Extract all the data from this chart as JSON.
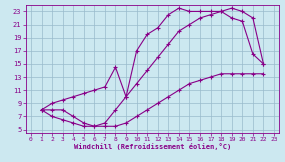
{
  "bg_color": "#cce8f0",
  "line_color": "#880088",
  "grid_color": "#99bbcc",
  "xlabel": "Windchill (Refroidissement éolien,°C)",
  "xlim": [
    -0.5,
    23.5
  ],
  "ylim": [
    4.5,
    24
  ],
  "xticks": [
    0,
    1,
    2,
    3,
    4,
    5,
    6,
    7,
    8,
    9,
    10,
    11,
    12,
    13,
    14,
    15,
    16,
    17,
    18,
    19,
    20,
    21,
    22,
    23
  ],
  "yticks": [
    5,
    7,
    9,
    11,
    13,
    15,
    17,
    19,
    21,
    23
  ],
  "line1_x": [
    1,
    2,
    3,
    4,
    5,
    6,
    7,
    8,
    9,
    10,
    11,
    12,
    13,
    14,
    15,
    16,
    17,
    18,
    19,
    20,
    21,
    22
  ],
  "line1_y": [
    8,
    8,
    8,
    7,
    6,
    5.5,
    5.5,
    5.5,
    6,
    7,
    8,
    9,
    10,
    11,
    12,
    12.5,
    13,
    13.5,
    13.5,
    13.5,
    13.5,
    13.5
  ],
  "line2_x": [
    1,
    2,
    3,
    4,
    5,
    6,
    7,
    8,
    9,
    10,
    11,
    12,
    13,
    14,
    15,
    16,
    17,
    18,
    19,
    20,
    21,
    22
  ],
  "line2_y": [
    8,
    7,
    6.5,
    6,
    5.5,
    5.5,
    6,
    8,
    10,
    12,
    14,
    16,
    18,
    20,
    21,
    22,
    22.5,
    23,
    23.5,
    23,
    22,
    15
  ],
  "line3_x": [
    1,
    2,
    3,
    4,
    5,
    6,
    7,
    8,
    9,
    10,
    11,
    12,
    13,
    14,
    15,
    16,
    17,
    18,
    19,
    20,
    21,
    22
  ],
  "line3_y": [
    8,
    9,
    9.5,
    10,
    10.5,
    11,
    11.5,
    14.5,
    10,
    17,
    19.5,
    20.5,
    22.5,
    23.5,
    23,
    23,
    23,
    23,
    22,
    21.5,
    16.5,
    15
  ]
}
